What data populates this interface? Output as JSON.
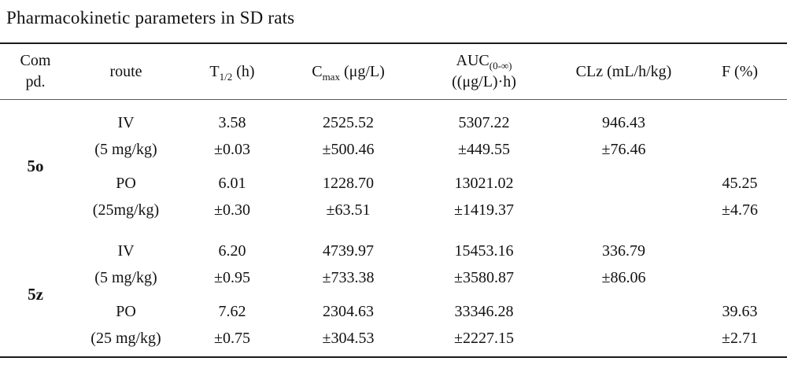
{
  "title": "Pharmacokinetic parameters in SD rats",
  "table": {
    "headers": {
      "compound": [
        "Com",
        "pd."
      ],
      "route": "route",
      "t_half": {
        "base": "T",
        "sub": "1/2",
        "unit": " (h)"
      },
      "cmax": {
        "base": "C",
        "sub": "max",
        "unit": " (μg/L)"
      },
      "auc": {
        "base": "AUC",
        "sub": "(0-∞)",
        "unit_line2": "((μg/L)·h)"
      },
      "clz": "CLz (mL/h/kg)",
      "f": "F (%)"
    },
    "groups": [
      {
        "compound": "5o",
        "rows": [
          {
            "route": "IV",
            "dose": "(5 mg/kg)",
            "t_half": "3.58",
            "t_half_sd": "±0.03",
            "cmax": "2525.52",
            "cmax_sd": "±500.46",
            "auc": "5307.22",
            "auc_sd": "±449.55",
            "clz": "946.43",
            "clz_sd": "±76.46",
            "f": "",
            "f_sd": ""
          },
          {
            "route": "PO",
            "dose": "(25mg/kg)",
            "t_half": "6.01",
            "t_half_sd": "±0.30",
            "cmax": "1228.70",
            "cmax_sd": "±63.51",
            "auc": "13021.02",
            "auc_sd": "±1419.37",
            "clz": "",
            "clz_sd": "",
            "f": "45.25",
            "f_sd": "±4.76"
          }
        ]
      },
      {
        "compound": "5z",
        "rows": [
          {
            "route": "IV",
            "dose": "(5 mg/kg)",
            "t_half": "6.20",
            "t_half_sd": "±0.95",
            "cmax": "4739.97",
            "cmax_sd": "±733.38",
            "auc": "15453.16",
            "auc_sd": "±3580.87",
            "clz": "336.79",
            "clz_sd": "±86.06",
            "f": "",
            "f_sd": ""
          },
          {
            "route": "PO",
            "dose": "(25 mg/kg)",
            "t_half": "7.62",
            "t_half_sd": "±0.75",
            "cmax": "2304.63",
            "cmax_sd": "±304.53",
            "auc": "33346.28",
            "auc_sd": "±2227.15",
            "clz": "",
            "clz_sd": "",
            "f": "39.63",
            "f_sd": "±2.71"
          }
        ]
      }
    ]
  }
}
